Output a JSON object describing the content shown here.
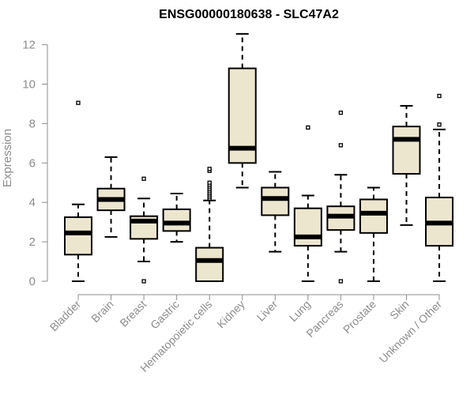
{
  "chart_data": {
    "type": "boxplot",
    "title": "ENSG00000180638 - SLC47A2",
    "xlabel": "",
    "ylabel": "Expression",
    "ylim": [
      0,
      12.6
    ],
    "yticks": [
      0,
      2,
      4,
      6,
      8,
      10,
      12
    ],
    "grid": false,
    "colors": {
      "box_fill": "#ede6cf",
      "box_stroke": "#000000",
      "axis": "#8c8c8c"
    },
    "categories": [
      "Bladder",
      "Brain",
      "Breast",
      "Gastric",
      "Hematopoietic cells",
      "Kidney",
      "Liver",
      "Lung",
      "Pancreas",
      "Prostate",
      "Skin",
      "Unknown / Other"
    ],
    "series": [
      {
        "name": "Bladder",
        "whisker_low": 0.0,
        "q1": 1.35,
        "median": 2.45,
        "q3": 3.25,
        "whisker_high": 3.9,
        "outliers": [
          9.05
        ]
      },
      {
        "name": "Brain",
        "whisker_low": 2.25,
        "q1": 3.6,
        "median": 4.15,
        "q3": 4.7,
        "whisker_high": 6.3,
        "outliers": []
      },
      {
        "name": "Breast",
        "whisker_low": 1.0,
        "q1": 2.15,
        "median": 3.05,
        "q3": 3.3,
        "whisker_high": 4.2,
        "outliers": [
          5.2,
          0.0
        ]
      },
      {
        "name": "Gastric",
        "whisker_low": 2.0,
        "q1": 2.55,
        "median": 2.95,
        "q3": 3.65,
        "whisker_high": 4.45,
        "outliers": []
      },
      {
        "name": "Hematopoietic cells",
        "whisker_low": 0.0,
        "q1": 0.0,
        "median": 1.05,
        "q3": 1.7,
        "whisker_high": 4.1,
        "outliers": [
          4.2,
          4.3,
          4.4,
          4.5,
          4.6,
          4.7,
          4.8,
          4.9,
          5.0,
          5.6,
          5.7
        ]
      },
      {
        "name": "Kidney",
        "whisker_low": 4.75,
        "q1": 6.0,
        "median": 6.75,
        "q3": 10.8,
        "whisker_high": 12.55,
        "outliers": []
      },
      {
        "name": "Liver",
        "whisker_low": 1.5,
        "q1": 3.35,
        "median": 4.2,
        "q3": 4.75,
        "whisker_high": 5.55,
        "outliers": []
      },
      {
        "name": "Lung",
        "whisker_low": 0.0,
        "q1": 1.8,
        "median": 2.25,
        "q3": 3.7,
        "whisker_high": 4.35,
        "outliers": [
          7.8
        ]
      },
      {
        "name": "Pancreas",
        "whisker_low": 1.5,
        "q1": 2.6,
        "median": 3.3,
        "q3": 3.8,
        "whisker_high": 5.4,
        "outliers": [
          8.55,
          6.9,
          0.0
        ]
      },
      {
        "name": "Prostate",
        "whisker_low": 0.0,
        "q1": 2.45,
        "median": 3.45,
        "q3": 4.15,
        "whisker_high": 4.75,
        "outliers": []
      },
      {
        "name": "Skin",
        "whisker_low": 2.85,
        "q1": 5.45,
        "median": 7.2,
        "q3": 7.85,
        "whisker_high": 8.9,
        "outliers": []
      },
      {
        "name": "Unknown / Other",
        "whisker_low": 0.0,
        "q1": 1.8,
        "median": 2.95,
        "q3": 4.25,
        "whisker_high": 7.7,
        "outliers": [
          7.95,
          9.4
        ]
      }
    ]
  }
}
